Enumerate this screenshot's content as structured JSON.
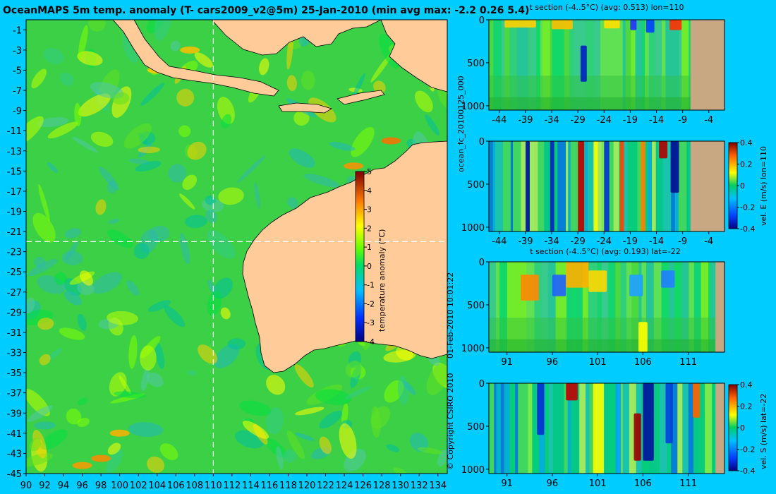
{
  "page": {
    "title": "OceanMAPS 5m temp. anomaly (T- cars2009_v2@5m) 25-Jan-2010 (min avg max: -2.2 0.26 5.4)",
    "side_label_run": "ocean_fc_20100125_000",
    "side_label_date": "01-Feb-2010 10:01:22",
    "copyright": "© Copyright CSIRO 2010"
  },
  "colors": {
    "background": "#00ccff",
    "land": "#ffcc99",
    "section_land": "#c8a882",
    "guide": "#ffffff"
  },
  "chart_data": [
    {
      "type": "heatmap",
      "title": "OceanMAPS 5m temp. anomaly (T- cars2009_v2@5m) 25-Jan-2010 (min avg max: -2.2 0.26 5.4)",
      "xlim": [
        90,
        135
      ],
      "ylim": [
        -45,
        0
      ],
      "x_ticks": [
        "90",
        "92",
        "94",
        "96",
        "98",
        "100",
        "102",
        "104",
        "106",
        "108",
        "110",
        "112",
        "114",
        "116",
        "118",
        "120",
        "122",
        "124",
        "126",
        "128",
        "130",
        "132",
        "134"
      ],
      "y_ticks": [
        "-1",
        "-3",
        "-5",
        "-7",
        "-9",
        "-11",
        "-13",
        "-15",
        "-17",
        "-19",
        "-21",
        "-23",
        "-25",
        "-27",
        "-29",
        "-31",
        "-33",
        "-35",
        "-37",
        "-39",
        "-41",
        "-43",
        "-45"
      ],
      "guide_lon": 110,
      "guide_lat": -22,
      "summary": {
        "min": -2.2,
        "avg": 0.26,
        "max": 5.4
      },
      "colorbar": {
        "label": "temperature anomaly (°C)",
        "range": [
          -4,
          5
        ],
        "ticks": [
          "5",
          "4",
          "3",
          "2",
          "1",
          "0",
          "-1",
          "-2",
          "-3",
          "-4"
        ]
      }
    },
    {
      "type": "heatmap",
      "title": "t section (-4..5°C) (avg: 0.513) lon=110",
      "xlim": [
        -46,
        -1
      ],
      "x_ticks": [
        "-44",
        "-39",
        "-34",
        "-29",
        "-24",
        "-19",
        "-14",
        "-9",
        "-4"
      ],
      "ylim": [
        1050,
        0
      ],
      "y_ticks": [
        "0",
        "500",
        "1000"
      ],
      "land_from": -7.5
    },
    {
      "type": "heatmap",
      "title": "",
      "ylabel": "vel. E (m/s) lon=110",
      "xlim": [
        -46,
        -1
      ],
      "x_ticks": [
        "-44",
        "-39",
        "-34",
        "-29",
        "-24",
        "-19",
        "-14",
        "-9",
        "-4"
      ],
      "ylim": [
        1050,
        0
      ],
      "y_ticks": [
        "0",
        "500",
        "1000"
      ],
      "land_from": -7.5,
      "colorbar": {
        "range": [
          -0.4,
          0.4
        ],
        "ticks": [
          "0.4",
          "0.2",
          "0",
          "-0.2",
          "-0.4"
        ]
      }
    },
    {
      "type": "heatmap",
      "title": "t section (-4..5°C) (avg: 0.193) lat=-22",
      "xlim": [
        89,
        115
      ],
      "x_ticks": [
        "91",
        "96",
        "101",
        "106",
        "111"
      ],
      "ylim": [
        1050,
        0
      ],
      "y_ticks": [
        "0",
        "500",
        "1000"
      ],
      "land_from": 114
    },
    {
      "type": "heatmap",
      "title": "",
      "ylabel": "vel. S (m/s) lat=-22",
      "xlim": [
        89,
        115
      ],
      "x_ticks": [
        "91",
        "96",
        "101",
        "106",
        "111"
      ],
      "ylim": [
        1050,
        0
      ],
      "y_ticks": [
        "0",
        "500",
        "1000"
      ],
      "land_from": 114,
      "colorbar": {
        "range": [
          -0.4,
          0.4
        ],
        "ticks": [
          "0.4",
          "0.2",
          "0",
          "-0.2",
          "-0.4"
        ]
      }
    }
  ]
}
